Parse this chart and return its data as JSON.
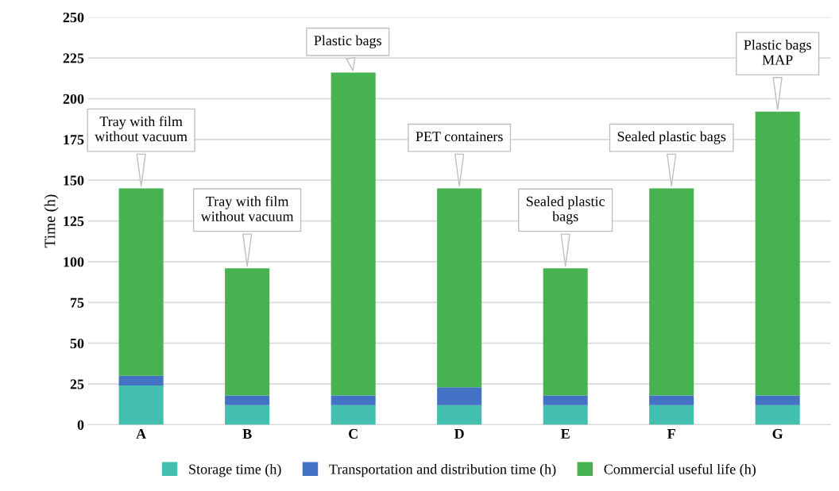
{
  "chart_data": {
    "type": "bar",
    "stacked": true,
    "ylabel": "Time (h)",
    "categories": [
      "A",
      "B",
      "C",
      "D",
      "E",
      "F",
      "G"
    ],
    "series": [
      {
        "name": "Storage time (h)",
        "color": "#43bfb0",
        "values": [
          24,
          12,
          12,
          12,
          12,
          12,
          12
        ]
      },
      {
        "name": "Transportation and distribution time (h)",
        "color": "#4472c4",
        "values": [
          6,
          6,
          6,
          11,
          6,
          6,
          6
        ]
      },
      {
        "name": "Commercial useful life (h)",
        "color": "#47b350",
        "values": [
          115,
          78,
          198,
          122,
          78,
          127,
          174
        ]
      }
    ],
    "ylim": [
      0,
      250
    ],
    "yticks": [
      0,
      25,
      50,
      75,
      100,
      125,
      150,
      175,
      200,
      225,
      250
    ],
    "grid": "y",
    "legend": "bottom",
    "annotations": [
      {
        "text": "Tray with film\nwithout vacuum",
        "x": "A",
        "y": 145
      },
      {
        "text": "Tray with film\nwithout vacuum",
        "x": "B",
        "y": 96
      },
      {
        "text": "Plastic bags",
        "x": "C",
        "y": 216
      },
      {
        "text": "PET containers",
        "x": "D",
        "y": 145
      },
      {
        "text": "Sealed plastic\nbags",
        "x": "E",
        "y": 96
      },
      {
        "text": "Sealed plastic bags",
        "x": "F",
        "y": 145
      },
      {
        "text": "Plastic bags\nMAP",
        "x": "G",
        "y": 192
      }
    ]
  }
}
